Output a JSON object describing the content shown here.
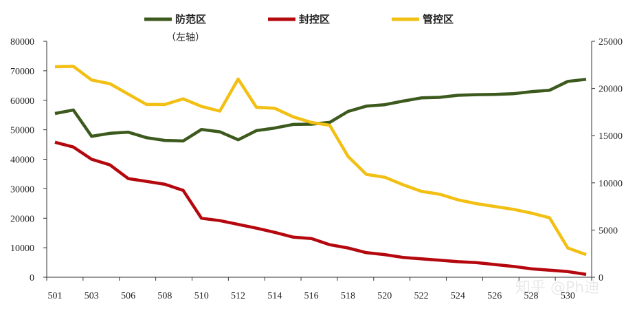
{
  "chart_data": {
    "type": "line",
    "x": [
      "501",
      "502",
      "503",
      "504",
      "506",
      "507",
      "508",
      "509",
      "510",
      "511",
      "512",
      "513",
      "514",
      "515",
      "516",
      "517",
      "518",
      "519",
      "520",
      "521",
      "522",
      "523",
      "524",
      "525",
      "526",
      "527",
      "528",
      "529",
      "530",
      "531"
    ],
    "x_tick_labels": [
      "501",
      "503",
      "506",
      "508",
      "510",
      "512",
      "514",
      "516",
      "518",
      "520",
      "522",
      "524",
      "526",
      "528",
      "530"
    ],
    "series": [
      {
        "name": "防范区",
        "axis": "left",
        "color": "#3d5a1e",
        "values": [
          55500,
          56700,
          47800,
          48800,
          49200,
          47300,
          46400,
          46200,
          50100,
          49300,
          46600,
          49700,
          50600,
          51800,
          51900,
          52500,
          56200,
          58000,
          58500,
          59700,
          60800,
          61000,
          61700,
          61900,
          62000,
          62200,
          62900,
          63400,
          66400,
          67100
        ]
      },
      {
        "name": "封控区",
        "axis": "right",
        "color": "#b5080e",
        "values": [
          14300,
          13800,
          12500,
          11900,
          10450,
          10150,
          9850,
          9200,
          6250,
          6000,
          5600,
          5200,
          4750,
          4250,
          4100,
          3450,
          3100,
          2600,
          2400,
          2100,
          1950,
          1800,
          1650,
          1550,
          1350,
          1150,
          900,
          750,
          600,
          300
        ]
      },
      {
        "name": "管控区",
        "axis": "right",
        "color": "#f2c014",
        "values": [
          22300,
          22350,
          20900,
          20500,
          19400,
          18300,
          18300,
          18900,
          18100,
          17600,
          21000,
          18000,
          17900,
          17000,
          16400,
          16100,
          12800,
          10900,
          10600,
          9800,
          9100,
          8800,
          8200,
          7800,
          7500,
          7200,
          6800,
          6300,
          3100,
          2400
        ]
      }
    ],
    "left_axis": {
      "ylim": [
        0,
        80000
      ],
      "ticks": [
        "0",
        "10000",
        "20000",
        "30000",
        "40000",
        "50000",
        "60000",
        "70000",
        "80000"
      ]
    },
    "right_axis": {
      "ylim": [
        0,
        25000
      ],
      "ticks": [
        "0",
        "5000",
        "10000",
        "15000",
        "20000",
        "25000"
      ]
    },
    "legend_note": "（左轴）",
    "legend_position": "top",
    "grid": false
  },
  "watermark": "知乎 @Ph迪"
}
